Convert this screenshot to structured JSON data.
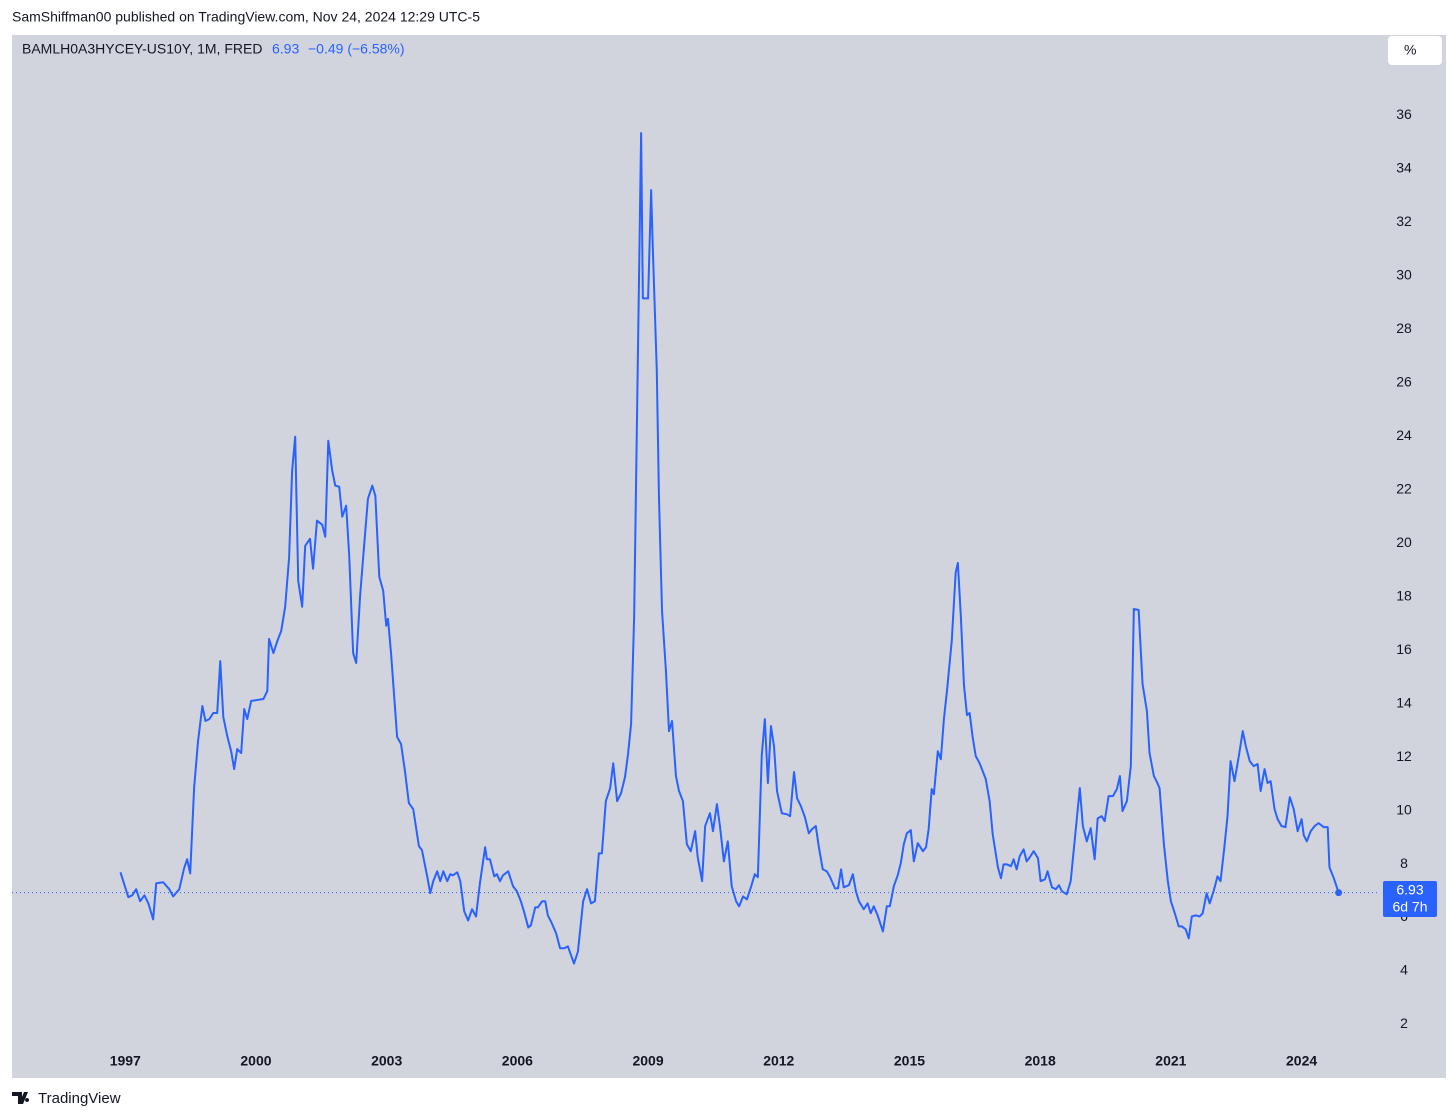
{
  "header": {
    "publisher": "SamShiffman00 published on TradingView.com, Nov 24, 2024 12:29 UTC-5",
    "symbol": "BAMLH0A3HYCEY-US10Y, 1M, FRED",
    "last": "6.93",
    "change": "−0.49 (−6.58%)",
    "scale_button": "%",
    "countdown": "6d 7h",
    "footer": "TradingView"
  },
  "chart_data": {
    "type": "line",
    "color": "#2962ff",
    "grid": false,
    "xlim": [
      1994.4,
      2025.8
    ],
    "ylim": [
      0,
      39
    ],
    "xticks": [
      1997,
      2000,
      2003,
      2006,
      2009,
      2012,
      2015,
      2018,
      2021,
      2024
    ],
    "yticks": [
      2,
      4,
      6,
      8,
      10,
      12,
      14,
      16,
      18,
      20,
      22,
      24,
      26,
      28,
      30,
      32,
      34,
      36
    ],
    "x": [
      1996.89,
      1997.07,
      1997.16,
      1997.25,
      1997.34,
      1997.44,
      1997.53,
      1997.64,
      1997.71,
      1997.87,
      1998.01,
      1998.1,
      1998.24,
      1998.35,
      1998.42,
      1998.49,
      1998.58,
      1998.67,
      1998.77,
      1998.84,
      1998.93,
      1999.02,
      1999.11,
      1999.18,
      1999.25,
      1999.34,
      1999.43,
      1999.5,
      1999.57,
      1999.66,
      1999.73,
      1999.8,
      1999.89,
      2000.17,
      2000.26,
      2000.3,
      2000.4,
      2000.49,
      2000.58,
      2000.67,
      2000.76,
      2000.83,
      2000.9,
      2000.97,
      2001.06,
      2001.13,
      2001.24,
      2001.31,
      2001.4,
      2001.52,
      2001.59,
      2001.66,
      2001.75,
      2001.82,
      2001.91,
      2001.98,
      2002.07,
      2002.14,
      2002.23,
      2002.3,
      2002.39,
      2002.48,
      2002.57,
      2002.67,
      2002.74,
      2002.83,
      2002.92,
      2002.99,
      2003.03,
      2003.1,
      2003.24,
      2003.33,
      2003.42,
      2003.51,
      2003.61,
      2003.74,
      2003.81,
      2003.93,
      2004.0,
      2004.07,
      2004.16,
      2004.23,
      2004.3,
      2004.39,
      2004.46,
      2004.52,
      2004.62,
      2004.69,
      2004.78,
      2004.87,
      2004.96,
      2005.05,
      2005.14,
      2005.26,
      2005.3,
      2005.37,
      2005.47,
      2005.53,
      2005.6,
      2005.67,
      2005.79,
      2005.9,
      2005.99,
      2006.08,
      2006.15,
      2006.25,
      2006.31,
      2006.41,
      2006.47,
      2006.57,
      2006.64,
      2006.7,
      2006.77,
      2006.89,
      2006.98,
      2007.07,
      2007.16,
      2007.3,
      2007.39,
      2007.51,
      2007.6,
      2007.69,
      2007.78,
      2007.87,
      2007.94,
      2008.03,
      2008.13,
      2008.2,
      2008.29,
      2008.38,
      2008.47,
      2008.54,
      2008.61,
      2008.68,
      2008.75,
      2008.84,
      2008.88,
      2009.0,
      2009.07,
      2009.11,
      2009.2,
      2009.25,
      2009.32,
      2009.41,
      2009.48,
      2009.55,
      2009.64,
      2009.71,
      2009.8,
      2009.89,
      2009.98,
      2010.08,
      2010.14,
      2010.24,
      2010.31,
      2010.42,
      2010.49,
      2010.58,
      2010.65,
      2010.74,
      2010.83,
      2010.92,
      2011.02,
      2011.09,
      2011.18,
      2011.27,
      2011.36,
      2011.45,
      2011.52,
      2011.61,
      2011.68,
      2011.75,
      2011.82,
      2011.89,
      2011.96,
      2012.07,
      2012.19,
      2012.26,
      2012.35,
      2012.42,
      2012.51,
      2012.6,
      2012.69,
      2012.76,
      2012.85,
      2012.92,
      2013.01,
      2013.1,
      2013.17,
      2013.29,
      2013.36,
      2013.43,
      2013.49,
      2013.61,
      2013.7,
      2013.77,
      2013.84,
      2013.95,
      2014.04,
      2014.11,
      2014.18,
      2014.27,
      2014.39,
      2014.48,
      2014.55,
      2014.64,
      2014.73,
      2014.8,
      2014.87,
      2014.94,
      2015.03,
      2015.1,
      2015.19,
      2015.31,
      2015.38,
      2015.44,
      2015.51,
      2015.56,
      2015.65,
      2015.72,
      2015.79,
      2015.86,
      2015.97,
      2016.06,
      2016.11,
      2016.18,
      2016.25,
      2016.32,
      2016.38,
      2016.45,
      2016.52,
      2016.61,
      2016.75,
      2016.84,
      2016.91,
      2017.03,
      2017.1,
      2017.16,
      2017.23,
      2017.33,
      2017.39,
      2017.46,
      2017.53,
      2017.62,
      2017.69,
      2017.76,
      2017.85,
      2017.95,
      2018.01,
      2018.11,
      2018.17,
      2018.27,
      2018.36,
      2018.43,
      2018.5,
      2018.61,
      2018.7,
      2018.79,
      2018.91,
      2018.98,
      2019.07,
      2019.16,
      2019.25,
      2019.32,
      2019.41,
      2019.48,
      2019.57,
      2019.67,
      2019.76,
      2019.83,
      2019.89,
      2019.99,
      2020.08,
      2020.15,
      2020.26,
      2020.35,
      2020.45,
      2020.51,
      2020.61,
      2020.67,
      2020.74,
      2020.84,
      2020.93,
      2021.0,
      2021.09,
      2021.18,
      2021.25,
      2021.34,
      2021.41,
      2021.48,
      2021.57,
      2021.66,
      2021.73,
      2021.82,
      2021.89,
      2021.98,
      2022.07,
      2022.14,
      2022.23,
      2022.3,
      2022.37,
      2022.46,
      2022.56,
      2022.65,
      2022.72,
      2022.81,
      2022.9,
      2022.99,
      2023.06,
      2023.15,
      2023.22,
      2023.29,
      2023.38,
      2023.45,
      2023.54,
      2023.63,
      2023.73,
      2023.82,
      2023.91,
      2024.0,
      2024.05,
      2024.12,
      2024.21,
      2024.3,
      2024.39,
      2024.51,
      2024.6,
      2024.64,
      2024.74,
      2024.85
    ],
    "values": [
      7.69,
      6.76,
      6.83,
      7.06,
      6.61,
      6.83,
      6.53,
      5.93,
      7.28,
      7.32,
      7.06,
      6.79,
      7.06,
      7.84,
      8.18,
      7.65,
      10.84,
      12.6,
      13.91,
      13.35,
      13.42,
      13.65,
      13.65,
      15.59,
      13.5,
      12.79,
      12.22,
      11.55,
      12.3,
      12.15,
      13.8,
      13.42,
      14.1,
      14.17,
      14.47,
      16.42,
      15.89,
      16.34,
      16.72,
      17.62,
      19.45,
      22.71,
      23.98,
      18.59,
      17.62,
      19.9,
      20.16,
      19.04,
      20.84,
      20.69,
      20.24,
      23.83,
      22.71,
      22.15,
      22.11,
      20.99,
      21.4,
      19.53,
      15.89,
      15.52,
      18.03,
      19.86,
      21.66,
      22.15,
      21.77,
      18.74,
      18.22,
      16.91,
      17.17,
      15.89,
      12.75,
      12.49,
      11.47,
      10.28,
      10.05,
      8.67,
      8.52,
      7.54,
      6.91,
      7.36,
      7.73,
      7.36,
      7.73,
      7.36,
      7.62,
      7.58,
      7.69,
      7.36,
      6.23,
      5.89,
      6.31,
      6.04,
      7.28,
      8.63,
      8.18,
      8.18,
      7.54,
      7.62,
      7.36,
      7.58,
      7.73,
      7.17,
      6.98,
      6.61,
      6.23,
      5.63,
      5.71,
      6.38,
      6.38,
      6.61,
      6.61,
      6.08,
      5.86,
      5.41,
      4.85,
      4.85,
      4.92,
      4.28,
      4.73,
      6.61,
      7.06,
      6.53,
      6.61,
      8.4,
      8.4,
      10.35,
      10.84,
      11.77,
      10.35,
      10.65,
      11.25,
      12.11,
      13.24,
      17.24,
      25.14,
      35.33,
      29.15,
      29.15,
      33.2,
      30.95,
      26.45,
      21.7,
      17.47,
      15.22,
      12.97,
      13.35,
      11.29,
      10.73,
      10.35,
      8.74,
      8.48,
      9.23,
      8.25,
      7.36,
      9.42,
      9.9,
      9.23,
      10.24,
      9.42,
      8.1,
      8.85,
      7.17,
      6.61,
      6.42,
      6.79,
      6.68,
      7.13,
      7.62,
      7.51,
      12.07,
      13.42,
      11.03,
      13.16,
      12.41,
      10.73,
      9.9,
      9.86,
      9.79,
      11.44,
      10.46,
      10.16,
      9.75,
      9.15,
      9.3,
      9.42,
      8.63,
      7.8,
      7.73,
      7.54,
      7.09,
      7.09,
      7.8,
      7.13,
      7.21,
      7.62,
      6.98,
      6.61,
      6.31,
      6.53,
      6.16,
      6.42,
      6.08,
      5.48,
      6.42,
      6.42,
      7.17,
      7.58,
      8.03,
      8.74,
      9.15,
      9.27,
      8.1,
      8.78,
      8.48,
      8.63,
      9.3,
      10.8,
      10.61,
      12.22,
      11.92,
      13.42,
      14.47,
      16.34,
      18.89,
      19.26,
      17.24,
      14.7,
      13.57,
      13.65,
      12.75,
      12.04,
      11.77,
      11.18,
      10.35,
      9.12,
      7.88,
      7.47,
      7.99,
      7.99,
      7.92,
      8.18,
      7.8,
      8.29,
      8.55,
      8.1,
      8.25,
      8.48,
      8.22,
      7.36,
      7.43,
      7.73,
      7.13,
      7.06,
      7.21,
      6.98,
      6.87,
      7.36,
      8.85,
      10.84,
      9.42,
      8.85,
      9.34,
      8.18,
      9.71,
      9.79,
      9.6,
      10.54,
      10.54,
      10.8,
      11.29,
      9.98,
      10.35,
      11.66,
      17.54,
      17.5,
      14.73,
      13.72,
      12.15,
      11.29,
      11.1,
      10.84,
      8.74,
      7.36,
      6.61,
      6.16,
      5.67,
      5.67,
      5.56,
      5.22,
      6.04,
      6.08,
      6.04,
      6.16,
      6.91,
      6.53,
      6.98,
      7.54,
      7.36,
      8.67,
      9.79,
      11.85,
      11.1,
      12.04,
      12.97,
      12.41,
      11.85,
      11.66,
      11.74,
      10.73,
      11.55,
      11.03,
      11.1,
      10.05,
      9.68,
      9.42,
      9.38,
      10.5,
      10.05,
      9.23,
      9.68,
      9.08,
      8.85,
      9.23,
      9.42,
      9.53,
      9.38,
      9.38,
      7.88,
      7.47,
      6.93
    ]
  }
}
